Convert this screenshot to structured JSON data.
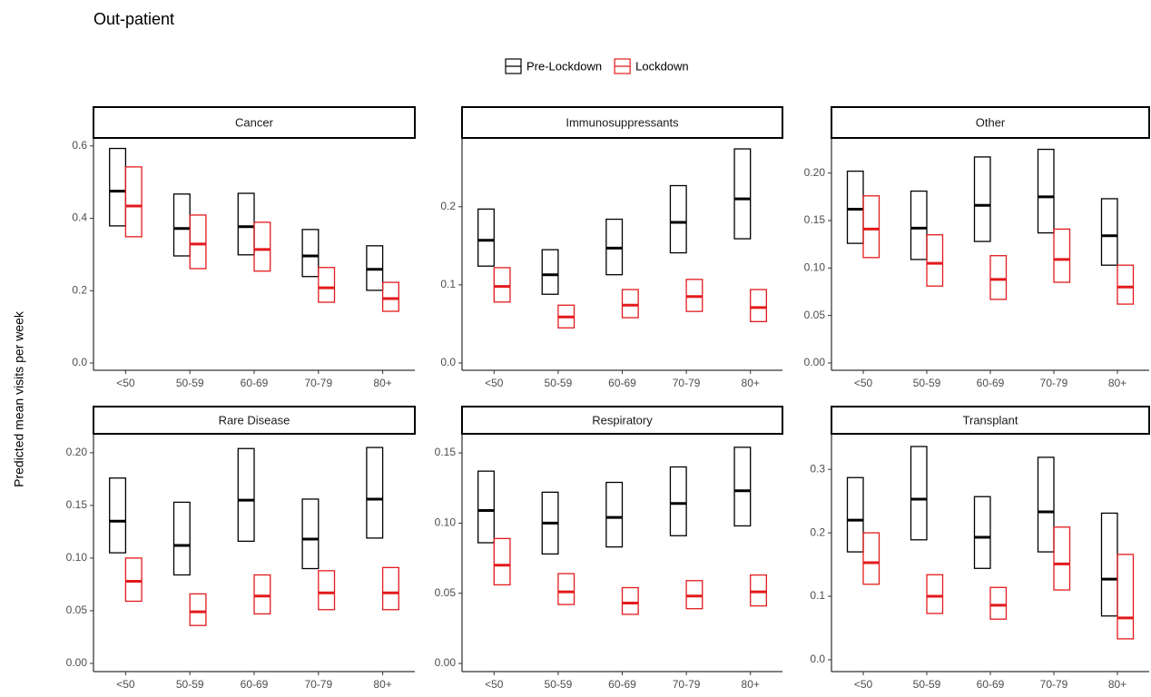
{
  "title": "Out-patient",
  "ylabel": "Predicted mean visits per week",
  "chart_data": [
    {
      "type": "crossbar",
      "title": "Cancer",
      "categories": [
        "<50",
        "50-59",
        "60-69",
        "70-79",
        "80+"
      ],
      "series": [
        {
          "name": "Pre-Lockdown",
          "color": "#000000",
          "low": [
            0.379,
            0.296,
            0.299,
            0.239,
            0.201
          ],
          "mid": [
            0.475,
            0.372,
            0.377,
            0.296,
            0.259
          ],
          "high": [
            0.593,
            0.467,
            0.469,
            0.369,
            0.324
          ]
        },
        {
          "name": "Lockdown",
          "color": "#e31a1c",
          "low": [
            0.349,
            0.261,
            0.254,
            0.168,
            0.143
          ],
          "mid": [
            0.434,
            0.329,
            0.314,
            0.208,
            0.178
          ],
          "high": [
            0.542,
            0.409,
            0.389,
            0.264,
            0.223
          ]
        }
      ],
      "ylim": [
        -0.02,
        0.622
      ],
      "yticks": [
        {
          "value": 0,
          "label": "0.0"
        },
        0.2,
        0.4,
        0.6
      ]
    },
    {
      "type": "crossbar",
      "title": "Immunosuppressants",
      "categories": [
        "<50",
        "50-59",
        "60-69",
        "70-79",
        "80+"
      ],
      "series": [
        {
          "name": "Pre-Lockdown",
          "color": "#000000",
          "low": [
            0.124,
            0.088,
            0.113,
            0.141,
            0.159
          ],
          "mid": [
            0.157,
            0.113,
            0.147,
            0.18,
            0.21
          ],
          "high": [
            0.197,
            0.145,
            0.184,
            0.227,
            0.274
          ]
        },
        {
          "name": "Lockdown",
          "color": "#e31a1c",
          "low": [
            0.078,
            0.045,
            0.058,
            0.066,
            0.053
          ],
          "mid": [
            0.098,
            0.059,
            0.074,
            0.085,
            0.071
          ],
          "high": [
            0.122,
            0.074,
            0.094,
            0.107,
            0.094
          ]
        }
      ],
      "ylim": [
        -0.0093,
        0.288
      ],
      "yticks": [
        {
          "value": 0,
          "label": "0.0"
        },
        0.1,
        0.2
      ]
    },
    {
      "type": "crossbar",
      "title": "Other",
      "categories": [
        "<50",
        "50-59",
        "60-69",
        "70-79",
        "80+"
      ],
      "series": [
        {
          "name": "Pre-Lockdown",
          "color": "#000000",
          "low": [
            0.126,
            0.109,
            0.128,
            0.137,
            0.103
          ],
          "mid": [
            0.162,
            0.142,
            0.166,
            0.175,
            0.134
          ],
          "high": [
            0.202,
            0.181,
            0.217,
            0.225,
            0.173
          ]
        },
        {
          "name": "Lockdown",
          "color": "#e31a1c",
          "low": [
            0.111,
            0.081,
            0.067,
            0.085,
            0.062
          ],
          "mid": [
            0.141,
            0.105,
            0.088,
            0.109,
            0.08
          ],
          "high": [
            0.176,
            0.135,
            0.113,
            0.141,
            0.103
          ]
        }
      ],
      "ylim": [
        -0.0077,
        0.237
      ],
      "yticks": [
        {
          "value": 0,
          "label": "0.00"
        },
        0.05,
        {
          "value": 0.1,
          "label": "0.10"
        },
        0.15,
        {
          "value": 0.2,
          "label": "0.20"
        }
      ]
    },
    {
      "type": "crossbar",
      "title": "Rare Disease",
      "categories": [
        "<50",
        "50-59",
        "60-69",
        "70-79",
        "80+"
      ],
      "series": [
        {
          "name": "Pre-Lockdown",
          "color": "#000000",
          "low": [
            0.105,
            0.084,
            0.116,
            0.09,
            0.119
          ],
          "mid": [
            0.135,
            0.112,
            0.155,
            0.118,
            0.156
          ],
          "high": [
            0.176,
            0.153,
            0.204,
            0.156,
            0.205
          ]
        },
        {
          "name": "Lockdown",
          "color": "#e31a1c",
          "low": [
            0.059,
            0.036,
            0.047,
            0.051,
            0.051
          ],
          "mid": [
            0.078,
            0.049,
            0.064,
            0.067,
            0.067
          ],
          "high": [
            0.1,
            0.066,
            0.084,
            0.088,
            0.091
          ]
        }
      ],
      "ylim": [
        -0.0078,
        0.218
      ],
      "yticks": [
        {
          "value": 0,
          "label": "0.00"
        },
        0.05,
        {
          "value": 0.1,
          "label": "0.10"
        },
        0.15,
        {
          "value": 0.2,
          "label": "0.20"
        }
      ]
    },
    {
      "type": "crossbar",
      "title": "Respiratory",
      "categories": [
        "<50",
        "50-59",
        "60-69",
        "70-79",
        "80+"
      ],
      "series": [
        {
          "name": "Pre-Lockdown",
          "color": "#000000",
          "low": [
            0.086,
            0.078,
            0.083,
            0.091,
            0.098
          ],
          "mid": [
            0.109,
            0.1,
            0.104,
            0.114,
            0.123
          ],
          "high": [
            0.137,
            0.122,
            0.129,
            0.14,
            0.154
          ]
        },
        {
          "name": "Lockdown",
          "color": "#e31a1c",
          "low": [
            0.056,
            0.042,
            0.035,
            0.039,
            0.041
          ],
          "mid": [
            0.07,
            0.051,
            0.043,
            0.048,
            0.051
          ],
          "high": [
            0.089,
            0.064,
            0.054,
            0.059,
            0.063
          ]
        }
      ],
      "ylim": [
        -0.0058,
        0.1636
      ],
      "yticks": [
        {
          "value": 0,
          "label": "0.00"
        },
        0.05,
        {
          "value": 0.1,
          "label": "0.10"
        },
        0.15
      ]
    },
    {
      "type": "crossbar",
      "title": "Transplant",
      "categories": [
        "<50",
        "50-59",
        "60-69",
        "70-79",
        "80+"
      ],
      "series": [
        {
          "name": "Pre-Lockdown",
          "color": "#000000",
          "low": [
            0.17,
            0.189,
            0.144,
            0.17,
            0.069
          ],
          "mid": [
            0.22,
            0.253,
            0.193,
            0.233,
            0.127
          ],
          "high": [
            0.287,
            0.336,
            0.257,
            0.319,
            0.231
          ]
        },
        {
          "name": "Lockdown",
          "color": "#e31a1c",
          "low": [
            0.119,
            0.073,
            0.064,
            0.11,
            0.033
          ],
          "mid": [
            0.153,
            0.1,
            0.086,
            0.151,
            0.066
          ],
          "high": [
            0.2,
            0.134,
            0.114,
            0.209,
            0.166
          ]
        }
      ],
      "ylim": [
        -0.0186,
        0.356
      ],
      "yticks": [
        {
          "value": 0,
          "label": "0.0"
        },
        0.1,
        0.2,
        0.3
      ]
    }
  ]
}
